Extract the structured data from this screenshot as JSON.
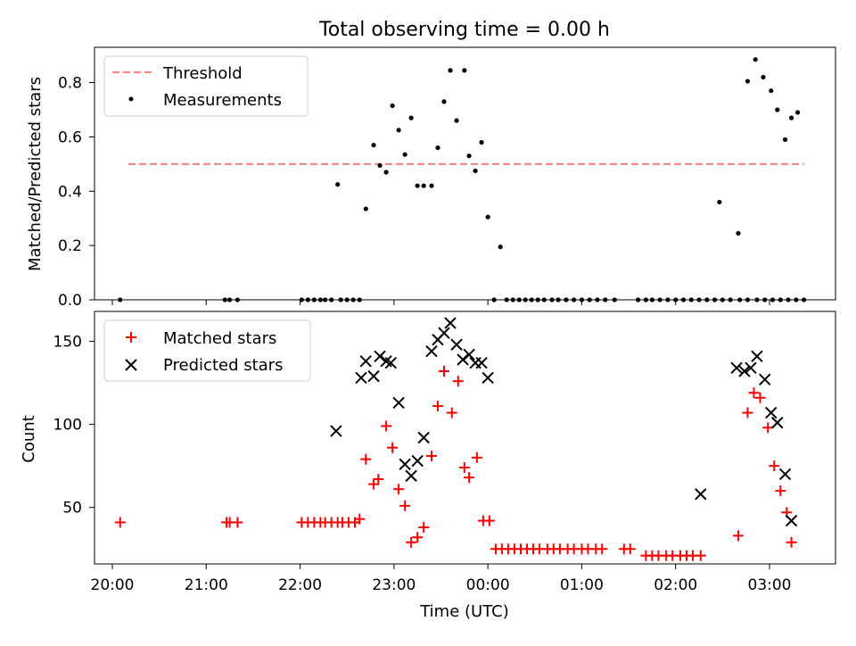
{
  "chart_data": [
    {
      "type": "scatter",
      "title": "Total observing time = 0.00 h",
      "ylabel": "Matched/Predicted stars",
      "xlabel": "",
      "x_ticks": [
        "20:00",
        "21:00",
        "22:00",
        "23:00",
        "00:00",
        "01:00",
        "02:00",
        "03:00"
      ],
      "y_ticks": [
        "0.0",
        "0.2",
        "0.4",
        "0.6",
        "0.8"
      ],
      "ylim": [
        0,
        0.93
      ],
      "legend_position": "top-left",
      "threshold": {
        "name": "Threshold",
        "value": 0.5,
        "x_start": "20:00",
        "x_end": "03:22",
        "color": "#ff7f7f",
        "style": "dashed"
      },
      "series": [
        {
          "name": "Measurements",
          "color": "#000000",
          "marker": "dot",
          "points": [
            [
              "20:05",
              0
            ],
            [
              "21:12",
              0
            ],
            [
              "21:15",
              0
            ],
            [
              "21:20",
              0
            ],
            [
              "22:01",
              0
            ],
            [
              "22:05",
              0
            ],
            [
              "22:09",
              0
            ],
            [
              "22:13",
              0
            ],
            [
              "22:16",
              0
            ],
            [
              "22:20",
              0
            ],
            [
              "22:24",
              0.425
            ],
            [
              "22:26",
              0
            ],
            [
              "22:30",
              0
            ],
            [
              "22:34",
              0
            ],
            [
              "22:38",
              0
            ],
            [
              "22:42",
              0.335
            ],
            [
              "22:47",
              0.57
            ],
            [
              "22:51",
              0.495
            ],
            [
              "22:55",
              0.47
            ],
            [
              "22:59",
              0.715
            ],
            [
              "23:03",
              0.625
            ],
            [
              "23:07",
              0.535
            ],
            [
              "23:11",
              0.67
            ],
            [
              "23:15",
              0.42
            ],
            [
              "23:19",
              0.42
            ],
            [
              "23:24",
              0.42
            ],
            [
              "23:28",
              0.56
            ],
            [
              "23:32",
              0.73
            ],
            [
              "23:36",
              0.845
            ],
            [
              "23:40",
              0.66
            ],
            [
              "23:45",
              0.845
            ],
            [
              "23:48",
              0.53
            ],
            [
              "23:52",
              0.475
            ],
            [
              "23:56",
              0.58
            ],
            [
              "00:00",
              0.305
            ],
            [
              "00:04",
              0
            ],
            [
              "00:08",
              0.195
            ],
            [
              "00:12",
              0
            ],
            [
              "00:16",
              0
            ],
            [
              "00:20",
              0
            ],
            [
              "00:24",
              0
            ],
            [
              "00:28",
              0
            ],
            [
              "00:32",
              0
            ],
            [
              "00:36",
              0
            ],
            [
              "00:41",
              0
            ],
            [
              "00:45",
              0
            ],
            [
              "00:50",
              0
            ],
            [
              "00:55",
              0
            ],
            [
              "01:00",
              0
            ],
            [
              "01:05",
              0
            ],
            [
              "01:10",
              0
            ],
            [
              "01:15",
              0
            ],
            [
              "01:21",
              0
            ],
            [
              "01:36",
              0
            ],
            [
              "01:41",
              0
            ],
            [
              "01:45",
              0
            ],
            [
              "01:50",
              0
            ],
            [
              "01:55",
              0
            ],
            [
              "02:00",
              0
            ],
            [
              "02:05",
              0
            ],
            [
              "02:10",
              0
            ],
            [
              "02:15",
              0
            ],
            [
              "02:20",
              0
            ],
            [
              "02:25",
              0
            ],
            [
              "02:30",
              0
            ],
            [
              "02:35",
              0
            ],
            [
              "02:41",
              0
            ],
            [
              "02:46",
              0
            ],
            [
              "02:52",
              0
            ],
            [
              "02:57",
              0
            ],
            [
              "03:02",
              0
            ],
            [
              "03:07",
              0
            ],
            [
              "03:12",
              0
            ],
            [
              "03:17",
              0
            ],
            [
              "03:22",
              0
            ],
            [
              "02:28",
              0.36
            ],
            [
              "02:40",
              0.245
            ],
            [
              "02:46",
              0.805
            ],
            [
              "02:51",
              0.885
            ],
            [
              "02:56",
              0.82
            ],
            [
              "03:01",
              0.77
            ],
            [
              "03:05",
              0.7
            ],
            [
              "03:10",
              0.59
            ],
            [
              "03:14",
              0.67
            ],
            [
              "03:18",
              0.69
            ]
          ]
        }
      ]
    },
    {
      "type": "scatter",
      "title": "",
      "ylabel": "Count",
      "xlabel": "Time (UTC)",
      "x_ticks": [
        "20:00",
        "21:00",
        "22:00",
        "23:00",
        "00:00",
        "01:00",
        "02:00",
        "03:00"
      ],
      "y_ticks": [
        "50",
        "100",
        "150"
      ],
      "ylim": [
        16,
        168
      ],
      "legend_position": "top-left",
      "series": [
        {
          "name": "Matched stars",
          "color": "#ff0000",
          "marker": "plus",
          "points": [
            [
              "20:05",
              41
            ],
            [
              "21:13",
              41
            ],
            [
              "21:15",
              41
            ],
            [
              "21:20",
              41
            ],
            [
              "22:01",
              41
            ],
            [
              "22:05",
              41
            ],
            [
              "22:09",
              41
            ],
            [
              "22:13",
              41
            ],
            [
              "22:16",
              41
            ],
            [
              "22:20",
              41
            ],
            [
              "22:24",
              41
            ],
            [
              "22:27",
              41
            ],
            [
              "22:31",
              41
            ],
            [
              "22:35",
              41
            ],
            [
              "22:38",
              43
            ],
            [
              "22:42",
              79
            ],
            [
              "22:47",
              64
            ],
            [
              "22:50",
              67
            ],
            [
              "22:55",
              99
            ],
            [
              "22:59",
              86
            ],
            [
              "23:03",
              61
            ],
            [
              "23:07",
              51
            ],
            [
              "23:11",
              29
            ],
            [
              "23:15",
              32
            ],
            [
              "23:19",
              38
            ],
            [
              "23:24",
              81
            ],
            [
              "23:28",
              111
            ],
            [
              "23:32",
              132
            ],
            [
              "23:37",
              107
            ],
            [
              "23:41",
              126
            ],
            [
              "23:45",
              74
            ],
            [
              "23:48",
              68
            ],
            [
              "23:53",
              80
            ],
            [
              "23:57",
              42
            ],
            [
              "00:01",
              42
            ],
            [
              "00:05",
              25
            ],
            [
              "00:09",
              25
            ],
            [
              "00:13",
              25
            ],
            [
              "00:17",
              25
            ],
            [
              "00:21",
              25
            ],
            [
              "00:25",
              25
            ],
            [
              "00:29",
              25
            ],
            [
              "00:33",
              25
            ],
            [
              "00:38",
              25
            ],
            [
              "00:42",
              25
            ],
            [
              "00:46",
              25
            ],
            [
              "00:51",
              25
            ],
            [
              "00:55",
              25
            ],
            [
              "01:00",
              25
            ],
            [
              "01:04",
              25
            ],
            [
              "01:09",
              25
            ],
            [
              "01:13",
              25
            ],
            [
              "01:27",
              25
            ],
            [
              "01:31",
              25
            ],
            [
              "01:41",
              21
            ],
            [
              "01:45",
              21
            ],
            [
              "01:49",
              21
            ],
            [
              "01:54",
              21
            ],
            [
              "01:58",
              21
            ],
            [
              "02:03",
              21
            ],
            [
              "02:07",
              21
            ],
            [
              "02:11",
              21
            ],
            [
              "02:16",
              21
            ],
            [
              "02:40",
              33
            ],
            [
              "02:46",
              107
            ],
            [
              "02:50",
              119
            ],
            [
              "02:54",
              116
            ],
            [
              "02:59",
              98
            ],
            [
              "03:03",
              75
            ],
            [
              "03:07",
              60
            ],
            [
              "03:11",
              47
            ],
            [
              "03:14",
              29
            ]
          ]
        },
        {
          "name": "Predicted stars",
          "color": "#000000",
          "marker": "x",
          "points": [
            [
              "22:23",
              96
            ],
            [
              "22:39",
              128
            ],
            [
              "22:42",
              138
            ],
            [
              "22:47",
              129
            ],
            [
              "22:51",
              141
            ],
            [
              "22:55",
              138
            ],
            [
              "22:58",
              137
            ],
            [
              "23:03",
              113
            ],
            [
              "23:07",
              76
            ],
            [
              "23:11",
              69
            ],
            [
              "23:15",
              78
            ],
            [
              "23:19",
              92
            ],
            [
              "23:24",
              144
            ],
            [
              "23:28",
              151
            ],
            [
              "23:32",
              155
            ],
            [
              "23:36",
              161
            ],
            [
              "23:40",
              148
            ],
            [
              "23:44",
              139
            ],
            [
              "23:48",
              142
            ],
            [
              "23:52",
              137
            ],
            [
              "23:56",
              137
            ],
            [
              "00:00",
              128
            ],
            [
              "02:16",
              58
            ],
            [
              "02:39",
              134
            ],
            [
              "02:44",
              132
            ],
            [
              "02:48",
              134
            ],
            [
              "02:52",
              141
            ],
            [
              "02:57",
              127
            ],
            [
              "03:01",
              107
            ],
            [
              "03:05",
              101
            ],
            [
              "03:10",
              70
            ],
            [
              "03:14",
              42
            ]
          ]
        }
      ]
    }
  ]
}
